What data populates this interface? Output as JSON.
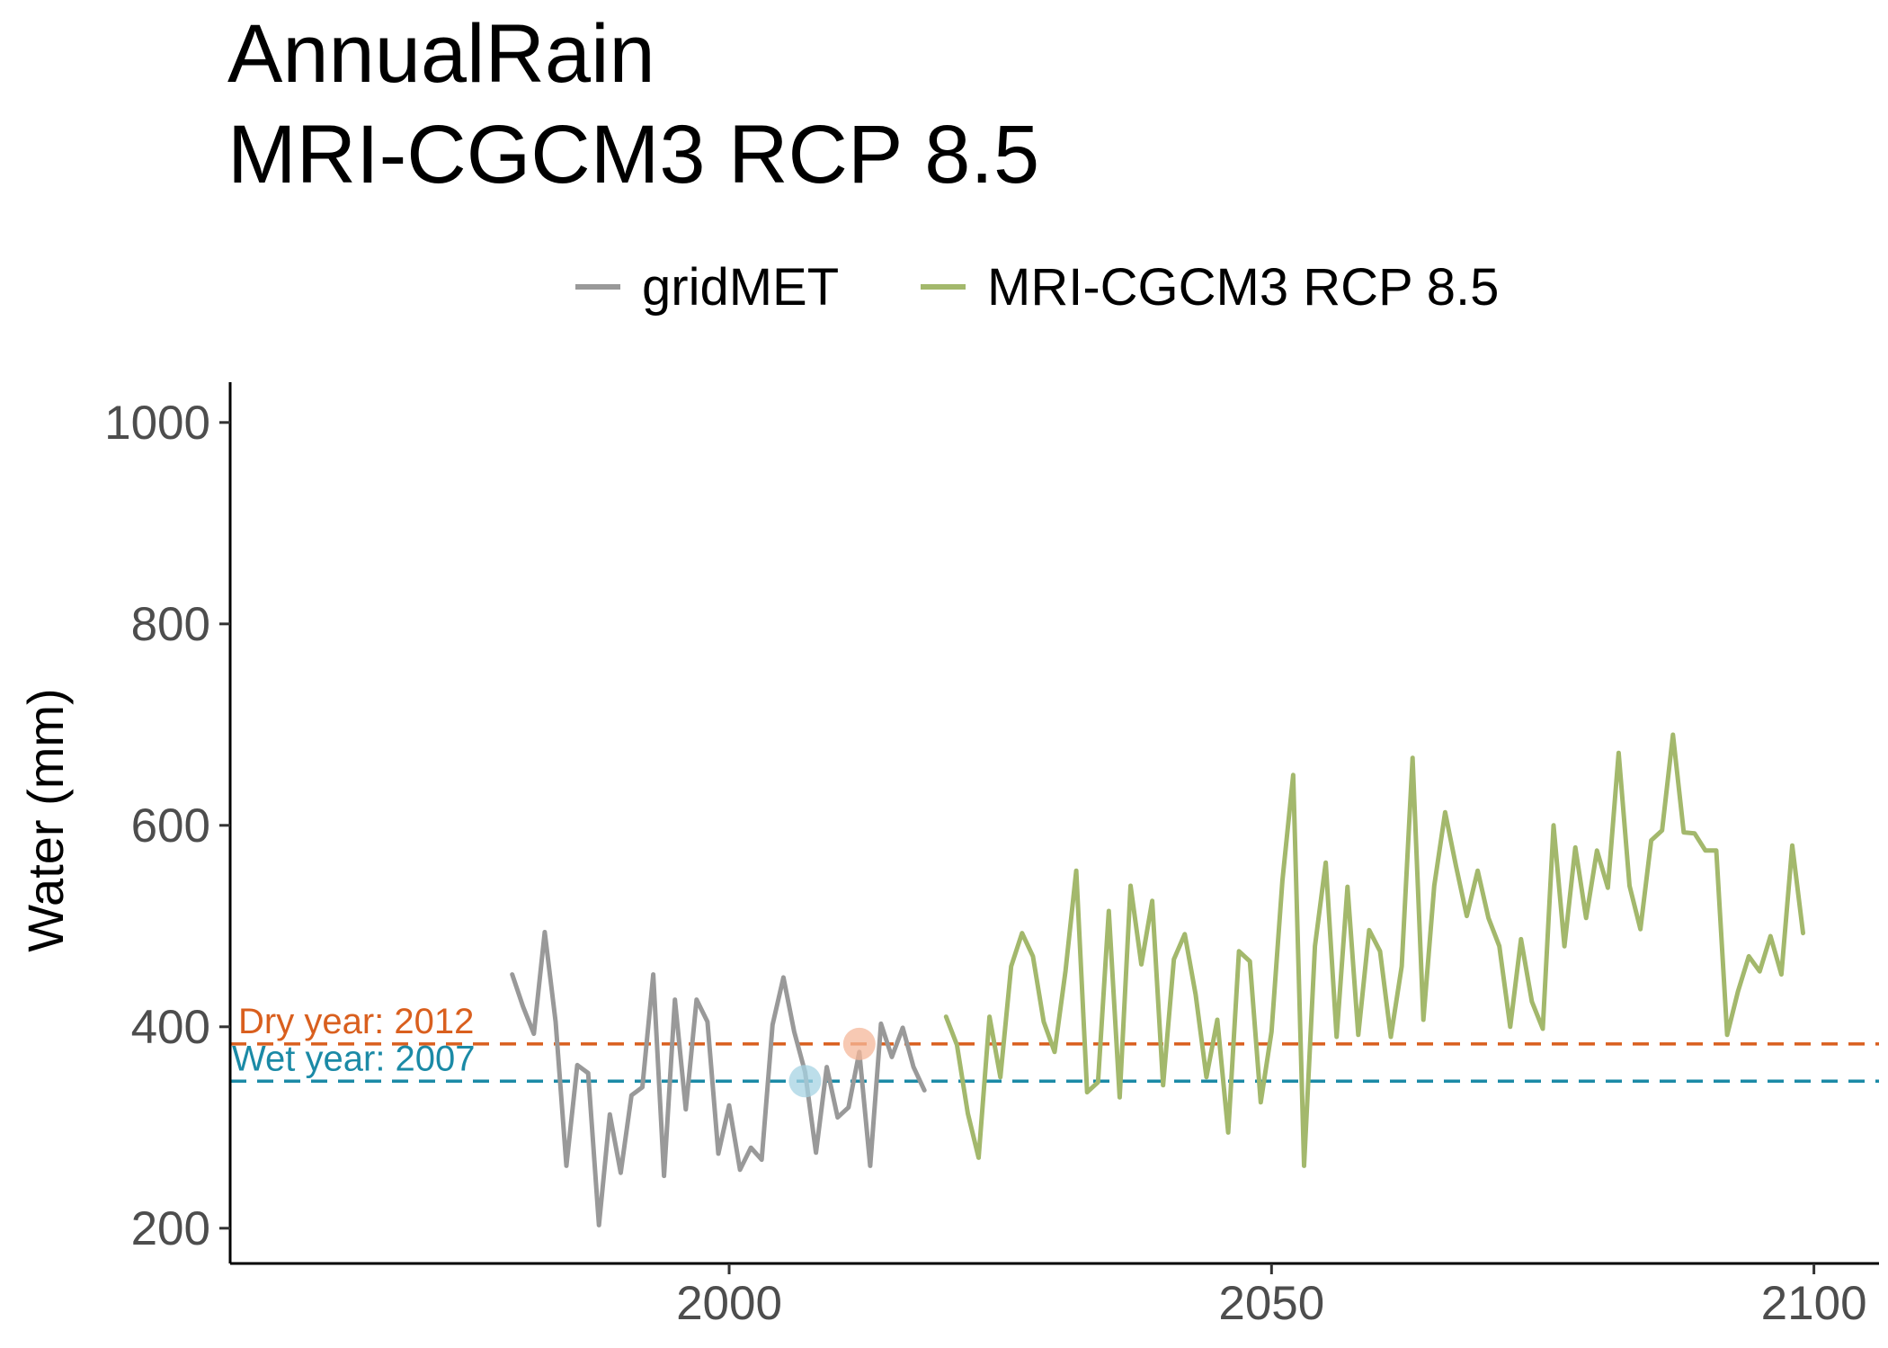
{
  "chart_data": {
    "type": "line",
    "title": "AnnualRain",
    "subtitle": "MRI-CGCM3 RCP 8.5",
    "xlabel": "",
    "ylabel": "Water (mm)",
    "xlim": [
      1954,
      2106
    ],
    "ylim": [
      165,
      1040
    ],
    "x_ticks": [
      2000,
      2050,
      2100
    ],
    "y_ticks": [
      200,
      400,
      600,
      800,
      1000
    ],
    "grid": false,
    "legend_position": "top",
    "series": [
      {
        "name": "gridMET",
        "color": "#999999",
        "x": [
          1980,
          1981,
          1982,
          1983,
          1984,
          1985,
          1986,
          1987,
          1988,
          1989,
          1990,
          1991,
          1992,
          1993,
          1994,
          1995,
          1996,
          1997,
          1998,
          1999,
          2000,
          2001,
          2002,
          2003,
          2004,
          2005,
          2006,
          2007,
          2008,
          2009,
          2010,
          2011,
          2012,
          2013,
          2014,
          2015,
          2016,
          2017,
          2018
        ],
        "values": [
          452,
          420,
          393,
          494,
          405,
          262,
          362,
          354,
          203,
          313,
          255,
          332,
          340,
          452,
          252,
          427,
          318,
          427,
          405,
          274,
          322,
          258,
          280,
          268,
          402,
          449,
          395,
          355,
          275,
          360,
          310,
          320,
          375,
          262,
          403,
          370,
          399,
          360,
          337
        ]
      },
      {
        "name": "MRI-CGCM3 RCP 8.5",
        "color": "#a3b86c",
        "x": [
          2020,
          2021,
          2022,
          2023,
          2024,
          2025,
          2026,
          2027,
          2028,
          2029,
          2030,
          2031,
          2032,
          2033,
          2034,
          2035,
          2036,
          2037,
          2038,
          2039,
          2040,
          2041,
          2042,
          2043,
          2044,
          2045,
          2046,
          2047,
          2048,
          2049,
          2050,
          2051,
          2052,
          2053,
          2054,
          2055,
          2056,
          2057,
          2058,
          2059,
          2060,
          2061,
          2062,
          2063,
          2064,
          2065,
          2066,
          2067,
          2068,
          2069,
          2070,
          2071,
          2072,
          2073,
          2074,
          2075,
          2076,
          2077,
          2078,
          2079,
          2080,
          2081,
          2082,
          2083,
          2084,
          2085,
          2086,
          2087,
          2088,
          2089,
          2090,
          2091,
          2092,
          2093,
          2094,
          2095,
          2096,
          2097,
          2098,
          2099
        ],
        "values": [
          410,
          382,
          314,
          270,
          410,
          350,
          460,
          493,
          470,
          405,
          375,
          455,
          555,
          335,
          345,
          515,
          330,
          540,
          462,
          525,
          342,
          467,
          492,
          432,
          350,
          407,
          295,
          475,
          465,
          325,
          395,
          545,
          650,
          262,
          480,
          563,
          390,
          539,
          392,
          496,
          475,
          390,
          460,
          667,
          407,
          540,
          613,
          560,
          510,
          555,
          508,
          480,
          400,
          487,
          425,
          398,
          600,
          480,
          578,
          508,
          575,
          538,
          672,
          540,
          497,
          585,
          595,
          690,
          593,
          592,
          575,
          575,
          392,
          435,
          470,
          455,
          490,
          452,
          580,
          493
        ]
      }
    ],
    "reference_lines": [
      {
        "label": "Dry year: 2012",
        "value": 383,
        "year": 2012,
        "color": "#d95f1e",
        "highlight": "#f4b79a"
      },
      {
        "label": "Wet year: 2007",
        "value": 346,
        "year": 2007,
        "color": "#1b8aa6",
        "highlight": "#a6d3e3"
      }
    ]
  }
}
